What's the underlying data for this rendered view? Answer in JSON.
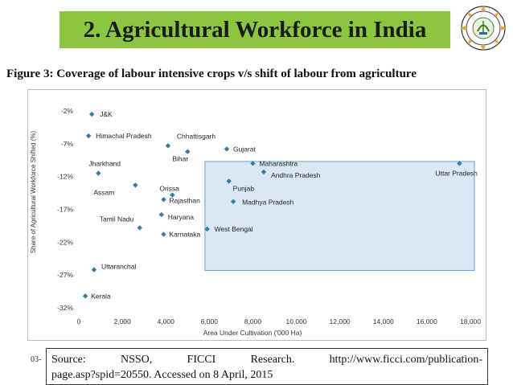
{
  "header": {
    "title": "2. Agricultural Workforce in India"
  },
  "figure": {
    "caption": "Figure 3: Coverage of labour intensive crops v/s shift of labour from agriculture"
  },
  "chart_data": {
    "type": "scatter",
    "xlabel": "Area Under Cultivation ('000 Ha)",
    "ylabel": "Share of Agricultural Workforce Shifted (%)",
    "xlim": [
      0,
      18000
    ],
    "ylim": [
      -32,
      -2
    ],
    "xticks": [
      0,
      2000,
      4000,
      6000,
      8000,
      10000,
      12000,
      14000,
      16000,
      18000
    ],
    "xtick_labels": [
      "0",
      "2,000",
      "4,000",
      "6,000",
      "8,000",
      "10,000",
      "12,000",
      "14,000",
      "16,000",
      "18,000"
    ],
    "yticks": [
      -2,
      -7,
      -12,
      -17,
      -22,
      -27,
      -32
    ],
    "ytick_labels": [
      "-2%",
      "-7%",
      "-12%",
      "-17%",
      "-22%",
      "-27%",
      "-32%"
    ],
    "grid": false,
    "marker_color": "#2e7fa0",
    "highlight_box_color": "#dbe7f3",
    "highlight_box_border": "#6a9fd0",
    "highlight_box": {
      "x": [
        5800,
        18600
      ],
      "y": [
        -26.3,
        -9.7
      ]
    },
    "points": [
      {
        "label": "J&K",
        "x": 600,
        "y": -2.5
      },
      {
        "label": "Himachal Pradesh",
        "x": 450,
        "y": -5.8
      },
      {
        "label": "Chhattisgarh",
        "x": 4100,
        "y": -7.3
      },
      {
        "label": "Gujarat",
        "x": 6800,
        "y": -7.8
      },
      {
        "label": "Bihar",
        "x": 5000,
        "y": -8.2
      },
      {
        "label": "Maharashtra",
        "x": 8000,
        "y": -10.0
      },
      {
        "label": "Uttar Pradesh",
        "x": 17500,
        "y": -10.0
      },
      {
        "label": "Jharkhand",
        "x": 900,
        "y": -11.5
      },
      {
        "label": "Andhra Pradesh",
        "x": 8500,
        "y": -11.3
      },
      {
        "label": "Punjab",
        "x": 6900,
        "y": -12.7
      },
      {
        "label": "Assam",
        "x": 2600,
        "y": -13.3
      },
      {
        "label": "Orissa",
        "x": 4300,
        "y": -14.8
      },
      {
        "label": "Rajasthan",
        "x": 3900,
        "y": -15.5
      },
      {
        "label": "Madhya Pradesh",
        "x": 7100,
        "y": -15.8
      },
      {
        "label": "Haryana",
        "x": 3800,
        "y": -17.8
      },
      {
        "label": "Tamil Nadu",
        "x": 2800,
        "y": -19.8
      },
      {
        "label": "West Bengal",
        "x": 5900,
        "y": -20.0
      },
      {
        "label": "Karnataka",
        "x": 3900,
        "y": -20.8
      },
      {
        "label": "Uttaranchal",
        "x": 700,
        "y": -26.2
      },
      {
        "label": "Kerala",
        "x": 300,
        "y": -30.2
      }
    ]
  },
  "footer": {
    "slide_number": "03-",
    "source_line1_words": [
      "Source:",
      "NSSO,",
      "FICCI",
      "Research.",
      "http://www.ficci.com/publication-"
    ],
    "source_line2": "page.asp?spid=20550. Accessed on 8 April, 2015"
  }
}
